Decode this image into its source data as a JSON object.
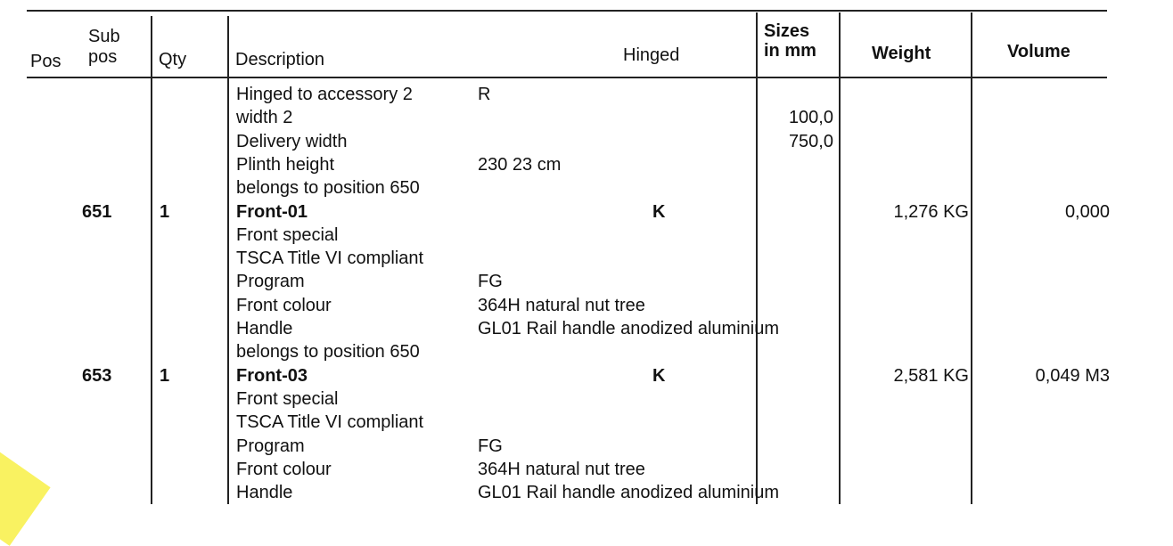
{
  "headers": {
    "pos": "Pos",
    "subpos_1": "Sub",
    "subpos_2": "pos",
    "qty": "Qty",
    "description": "Description",
    "hinged": "Hinged",
    "sizes_1": "Sizes",
    "sizes_2": "in mm",
    "weight": "Weight",
    "volume": "Volume"
  },
  "lines": [
    {
      "desc": "Hinged to accessory 2",
      "val": "R"
    },
    {
      "desc": "width 2",
      "size": "100,0"
    },
    {
      "desc": "Delivery width",
      "size": "750,0"
    },
    {
      "desc": "Plinth height",
      "val": "230   23 cm"
    },
    {
      "desc": "belongs to position 650"
    },
    {
      "pos": "651",
      "qty": "1",
      "desc": "Front-01",
      "hinged": "K",
      "weight": "1,276 KG",
      "volume": "0,000"
    },
    {
      "desc": "Front special"
    },
    {
      "desc": "TSCA Title VI compliant"
    },
    {
      "desc": "Program",
      "val": "FG"
    },
    {
      "desc": "Front colour",
      "val": "364H natural nut tree"
    },
    {
      "desc": "Handle",
      "val": "GL01 Rail handle anodized aluminium"
    },
    {
      "desc": "belongs to position 650"
    },
    {
      "pos": "653",
      "qty": "1",
      "desc": "Front-03",
      "hinged": "K",
      "weight": "2,581 KG",
      "volume": "0,049 M3"
    },
    {
      "desc": "Front special"
    },
    {
      "desc": "TSCA Title VI compliant"
    },
    {
      "desc": "Program",
      "val": "FG"
    },
    {
      "desc": "Front colour",
      "val": "364H natural nut tree"
    },
    {
      "desc": "Handle",
      "val": "GL01 Rail handle anodized aluminium"
    }
  ]
}
